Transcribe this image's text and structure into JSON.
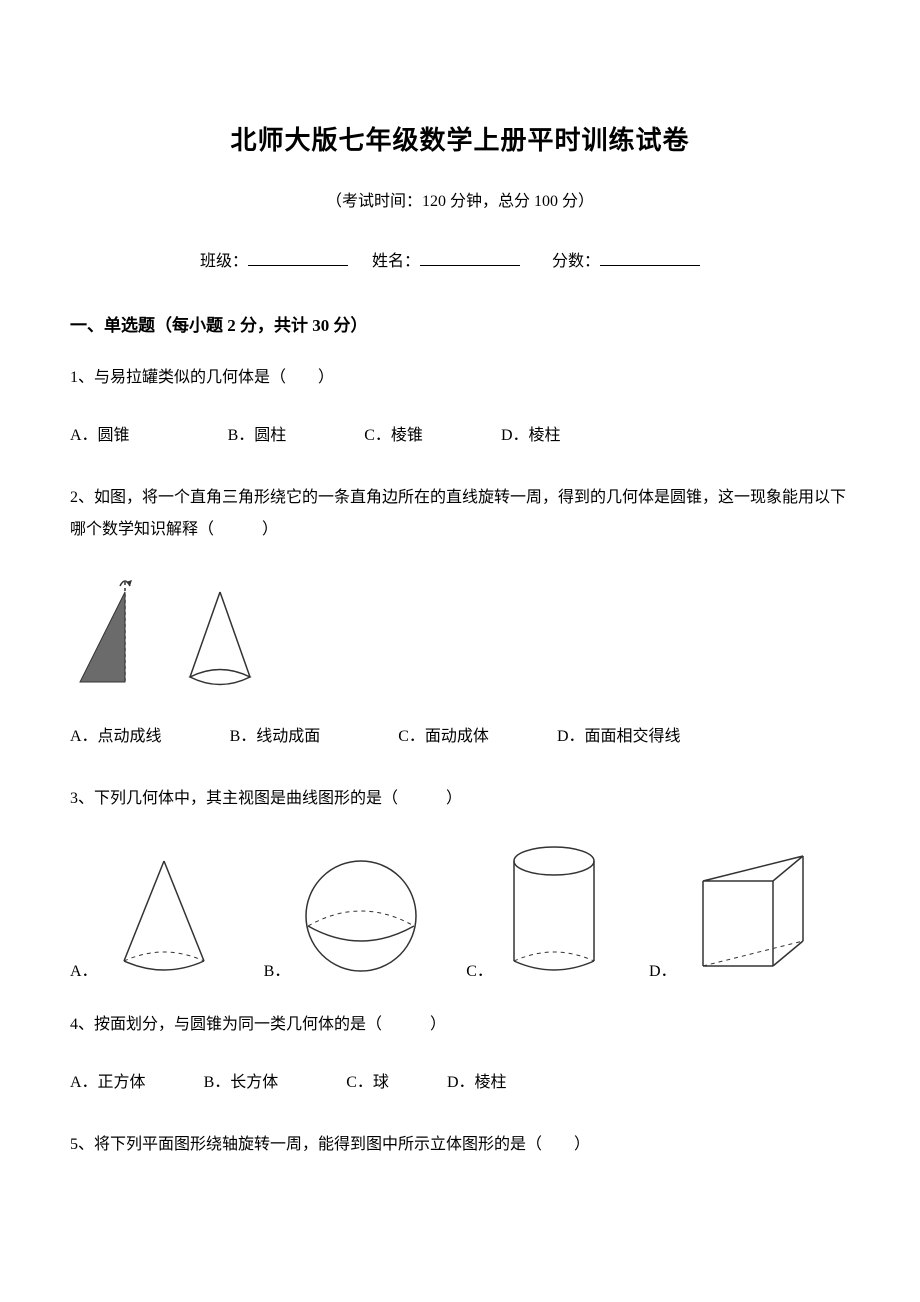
{
  "title": "北师大版七年级数学上册平时训练试卷",
  "subtitle": "（考试时间：120 分钟，总分 100 分）",
  "labels": {
    "class": "班级：",
    "name": "姓名：",
    "score": "分数："
  },
  "section1": {
    "heading": "一、单选题（每小题 2 分，共计 30 分）"
  },
  "q1": {
    "text": "1、与易拉罐类似的几何体是（　　）",
    "optA": "A．圆锥",
    "optB": "B．圆柱",
    "optC": "C．棱锥",
    "optD": "D．棱柱"
  },
  "q2": {
    "text": "2、如图，将一个直角三角形绕它的一条直角边所在的直线旋转一周，得到的几何体是圆锥，这一现象能用以下哪个数学知识解释（　　　）",
    "optA": "A．点动成线",
    "optB": "B．线动成面",
    "optC": "C．面动成体",
    "optD": "D．面面相交得线"
  },
  "q3": {
    "text": "3、下列几何体中，其主视图是曲线图形的是（　　　）",
    "optA": "A．",
    "optB": "B．",
    "optC": "C．",
    "optD": "D．"
  },
  "q4": {
    "text": "4、按面划分，与圆锥为同一类几何体的是（　　　）",
    "optA": "A．正方体",
    "optB": "B．长方体",
    "optC": "C．球",
    "optD": "D．棱柱"
  },
  "q5": {
    "text": "5、将下列平面图形绕轴旋转一周，能得到图中所示立体图形的是（　　）"
  },
  "gap": {
    "q1": {
      "ab": 90,
      "bc": 70,
      "cd": 70
    },
    "q2": {
      "ab": 60,
      "bc": 70,
      "cd": 60
    },
    "q4": {
      "ab": 50,
      "bc": 60,
      "cd": 50
    }
  },
  "colors": {
    "text": "#000000",
    "bg": "#ffffff",
    "stroke": "#333333",
    "fill_tri": "#6b6b6b"
  }
}
